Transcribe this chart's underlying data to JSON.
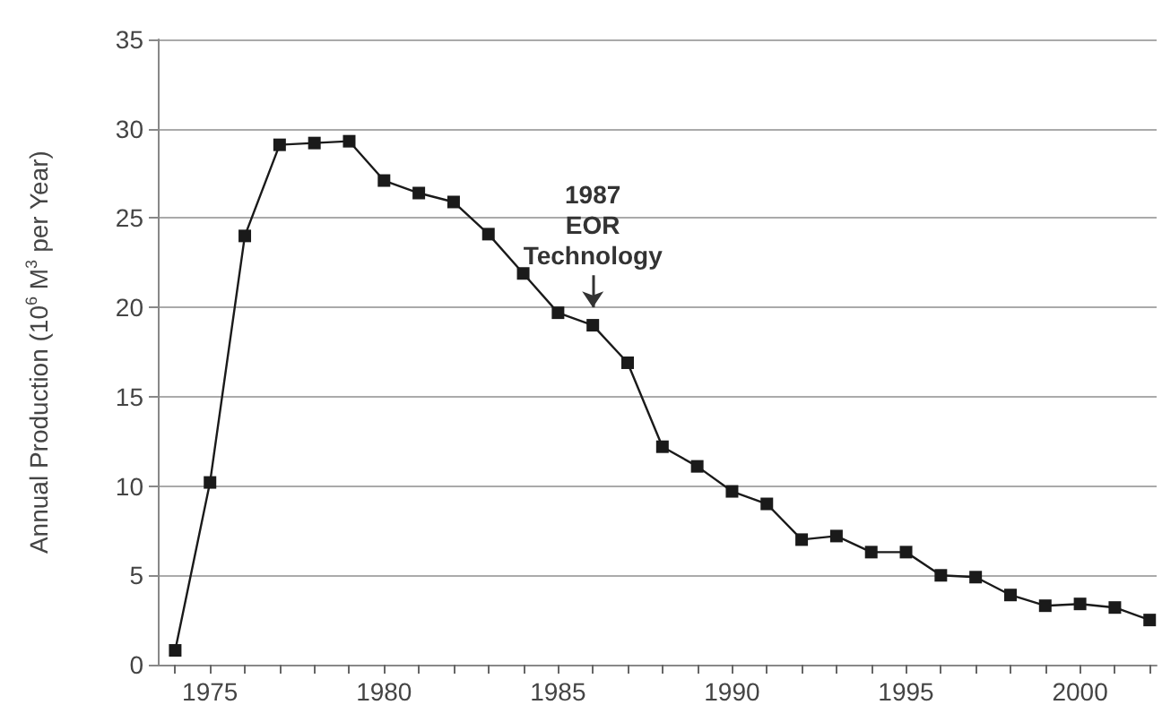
{
  "chart_data": {
    "type": "line",
    "ylabel": "Annual Production (10$^{6}$ M$^{3}$ per Year)",
    "x": [
      1974,
      1975,
      1976,
      1977,
      1978,
      1979,
      1980,
      1981,
      1982,
      1983,
      1984,
      1985,
      1986,
      1987,
      1988,
      1989,
      1990,
      1991,
      1992,
      1993,
      1994,
      1995,
      1996,
      1997,
      1998,
      1999,
      2000,
      2001,
      2002
    ],
    "series": [
      {
        "color": "#1a1a1a",
        "values": [
          0.8,
          10.2,
          24,
          29.1,
          29.2,
          29.3,
          27.1,
          26.4,
          25.9,
          24.1,
          21.9,
          19.7,
          19.0,
          16.9,
          12.2,
          11.1,
          9.7,
          9.0,
          7.0,
          7.2,
          6.3,
          6.3,
          5.0,
          4.9,
          3.9,
          3.3,
          3.4,
          3.2,
          2.5
        ]
      }
    ],
    "xlim": [
      1973.5,
      2002.2
    ],
    "xticks": [
      {
        "value": 1974,
        "label": null
      },
      1975,
      {
        "value": 1976,
        "label": null
      },
      {
        "value": 1977,
        "label": null
      },
      {
        "value": 1978,
        "label": null
      },
      {
        "value": 1979,
        "label": null
      },
      1980,
      {
        "value": 1981,
        "label": null
      },
      {
        "value": 1982,
        "label": null
      },
      {
        "value": 1983,
        "label": null
      },
      {
        "value": 1984,
        "label": null
      },
      1985,
      {
        "value": 1986,
        "label": null
      },
      {
        "value": 1987,
        "label": null
      },
      {
        "value": 1988,
        "label": null
      },
      {
        "value": 1989,
        "label": null
      },
      1990,
      {
        "value": 1991,
        "label": null
      },
      {
        "value": 1992,
        "label": null
      },
      {
        "value": 1993,
        "label": null
      },
      {
        "value": 1994,
        "label": null
      },
      1995,
      {
        "value": 1996,
        "label": null
      },
      {
        "value": 1997,
        "label": null
      },
      {
        "value": 1998,
        "label": null
      },
      {
        "value": 1999,
        "label": null
      },
      2000,
      {
        "value": 2001,
        "label": null
      },
      {
        "value": 2002,
        "label": null
      }
    ],
    "ylim": [
      0,
      35
    ],
    "yticks": [
      0,
      5,
      10,
      15,
      20,
      25,
      30,
      35
    ],
    "grid": "y",
    "marker": "square",
    "line_style": "solid",
    "annotations": [
      {
        "text": "1987\nEOR\nTechnology",
        "x": 1986,
        "y": 19.0
      }
    ]
  }
}
